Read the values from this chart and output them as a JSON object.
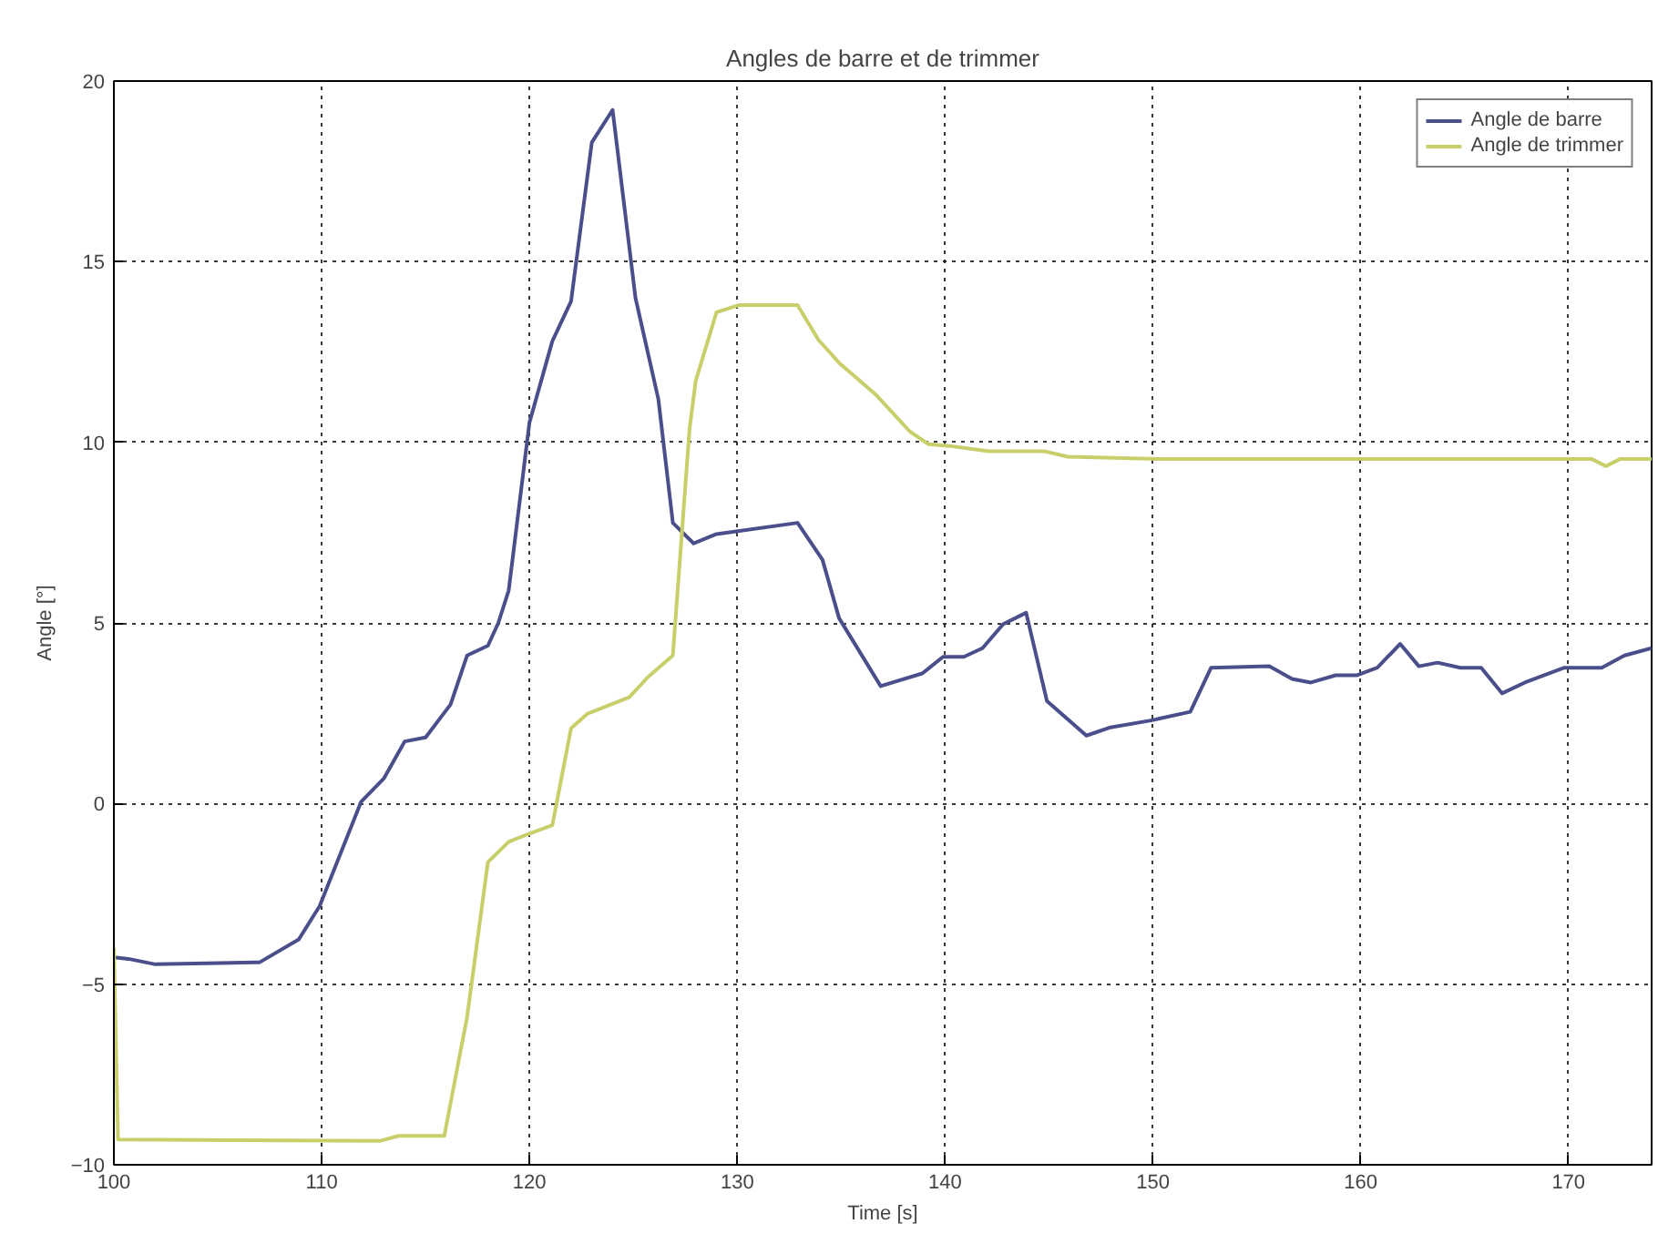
{
  "chart_data": {
    "type": "line",
    "title": "Angles de barre et de trimmer",
    "xlabel": "Time [s]",
    "ylabel": "Angle [°]",
    "xlim": [
      100,
      174
    ],
    "ylim": [
      -10,
      20
    ],
    "xticks": [
      100,
      110,
      120,
      130,
      140,
      150,
      160,
      170
    ],
    "yticks": [
      -10,
      -5,
      0,
      5,
      10,
      15,
      20
    ],
    "grid": true,
    "legend": "top right",
    "marker": "none",
    "line_style": "solid",
    "series": [
      {
        "name": "Angle de barre",
        "color": "#4a4f8c",
        "x": [
          100,
          100.7,
          102,
          106.8,
          107,
          108.9,
          109.9,
          111.9,
          113,
          114,
          115,
          116.2,
          117,
          118,
          118.5,
          119,
          120,
          121.1,
          122,
          123,
          124,
          125.1,
          126.2,
          126.9,
          127.9,
          129,
          132.9,
          134.1,
          134.9,
          136.9,
          138.9,
          139.9,
          140.9,
          141.8,
          142.8,
          143.9,
          144.9,
          146.8,
          147.9,
          149.9,
          151.8,
          152.8,
          155.6,
          156.7,
          157.6,
          158.8,
          159.8,
          160.8,
          161.9,
          162.8,
          163.7,
          164.8,
          165.8,
          166.8,
          167.9,
          169.8,
          171.6,
          172.7,
          174
        ],
        "values": [
          -4.26,
          -4.3,
          -4.45,
          -4.4,
          -4.4,
          -3.76,
          -2.84,
          0.05,
          0.7,
          1.72,
          1.83,
          2.74,
          4.1,
          4.37,
          5.0,
          5.9,
          10.55,
          12.8,
          13.9,
          18.3,
          19.2,
          14.0,
          11.2,
          7.77,
          7.2,
          7.46,
          7.77,
          6.75,
          5.13,
          3.25,
          3.6,
          4.06,
          4.06,
          4.3,
          4.97,
          5.28,
          2.84,
          1.88,
          2.1,
          2.3,
          2.54,
          3.76,
          3.8,
          3.45,
          3.35,
          3.55,
          3.55,
          3.76,
          4.42,
          3.8,
          3.9,
          3.76,
          3.76,
          3.05,
          3.35,
          3.76,
          3.76,
          4.1,
          4.3
        ]
      },
      {
        "name": "Angle de trimmer",
        "color": "#c8cf6a",
        "x": [
          100,
          100.2,
          112.8,
          113.7,
          115.9,
          117,
          118,
          119,
          120,
          121.1,
          122,
          122.8,
          124.8,
          125.7,
          126.9,
          127.7,
          128,
          129,
          130.1,
          132.9,
          133.9,
          134.9,
          136.7,
          138.3,
          139.2,
          140.2,
          142.1,
          144.8,
          145.9,
          150.3,
          160,
          171.1,
          171.8,
          172.5,
          174
        ],
        "values": [
          -4.0,
          -9.3,
          -9.34,
          -9.2,
          -9.2,
          -5.9,
          -1.62,
          -1.06,
          -0.83,
          -0.6,
          2.08,
          2.49,
          2.94,
          3.5,
          4.1,
          10.35,
          11.7,
          13.6,
          13.8,
          13.8,
          12.84,
          12.2,
          11.3,
          10.3,
          9.95,
          9.9,
          9.75,
          9.75,
          9.6,
          9.54,
          9.54,
          9.54,
          9.34,
          9.54,
          9.54
        ]
      }
    ]
  }
}
